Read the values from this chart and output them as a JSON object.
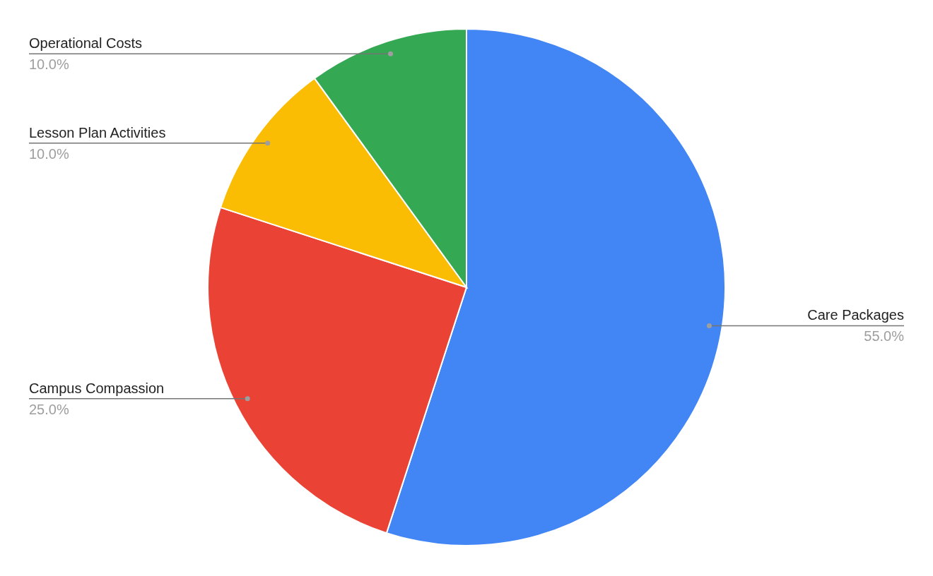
{
  "chart_data": {
    "type": "pie",
    "categories": [
      "Care Packages",
      "Campus Compassion",
      "Lesson Plan Activities",
      "Operational Costs"
    ],
    "values": [
      55,
      25,
      10,
      10
    ],
    "colors": [
      "#4285f4",
      "#ea4335",
      "#fbbc04",
      "#34a853"
    ],
    "value_labels": [
      "55.0%",
      "25.0%",
      "10.0%",
      "10.0%"
    ]
  }
}
